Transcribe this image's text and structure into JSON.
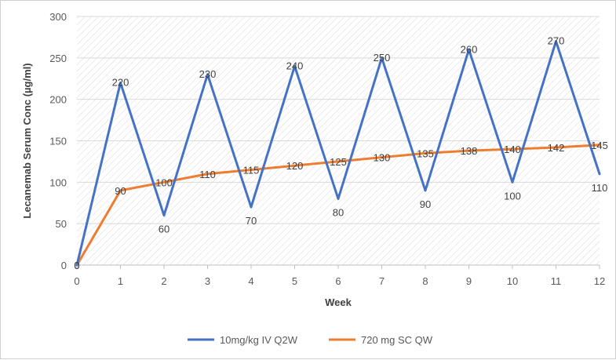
{
  "chart_data": {
    "type": "line",
    "title": "",
    "xlabel": "Week",
    "ylabel": "Lecanemab Serum Conc (µg/ml)",
    "x": [
      0,
      1,
      2,
      3,
      4,
      5,
      6,
      7,
      8,
      9,
      10,
      11,
      12
    ],
    "xlim": [
      0,
      12
    ],
    "ylim": [
      0,
      300
    ],
    "yticks": [
      0,
      50,
      100,
      150,
      200,
      250,
      300
    ],
    "grid": "hatched",
    "legend_position": "bottom",
    "series": [
      {
        "name": "10mg/kg IV Q2W",
        "color": "#4472c4",
        "values": [
          0,
          220,
          60,
          230,
          70,
          240,
          80,
          250,
          90,
          260,
          100,
          270,
          110
        ]
      },
      {
        "name": "720 mg SC QW",
        "color": "#ed7d31",
        "values": [
          0,
          90,
          100,
          110,
          115,
          120,
          125,
          130,
          135,
          138,
          140,
          142,
          145
        ]
      }
    ]
  }
}
